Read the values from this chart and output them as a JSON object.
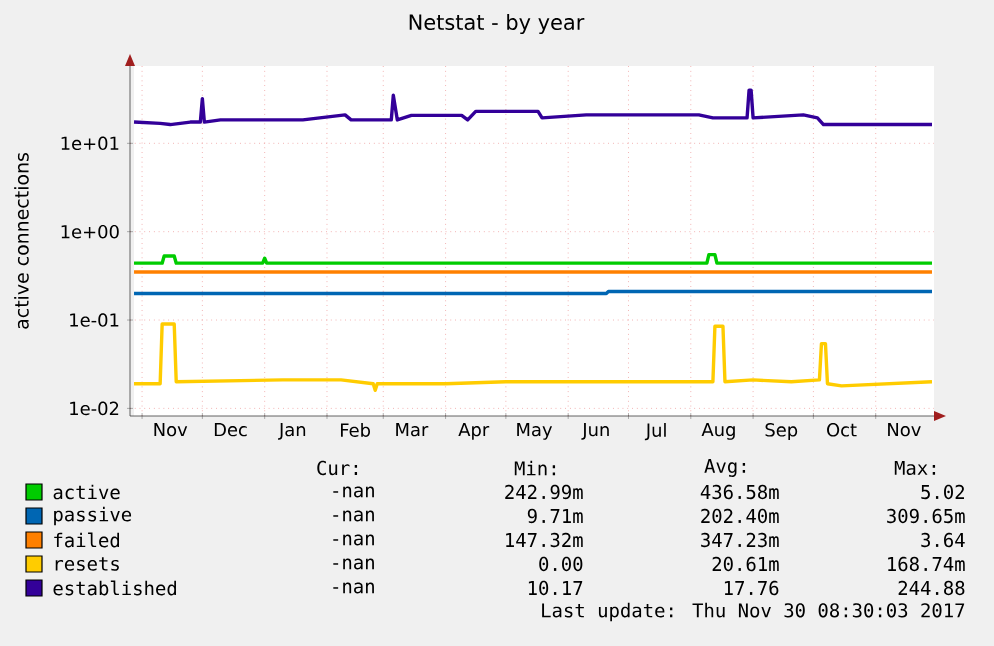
{
  "chart_data": {
    "type": "line",
    "title": "Netstat - by year",
    "ylabel": "active connections",
    "log": true,
    "grid": true,
    "legend": "bottom",
    "xlim": [
      "2016-10-26",
      "2017-11-30"
    ],
    "ylim": [
      0.0082,
      75
    ],
    "xticks": [
      {
        "value": "2016-11-01",
        "label": null
      },
      {
        "value": "2016-12-01",
        "label": null
      },
      {
        "value": "2017-01-01",
        "label": null
      },
      {
        "value": "2017-02-01",
        "label": null
      },
      {
        "value": "2017-03-01",
        "label": null
      },
      {
        "value": "2017-04-01",
        "label": null
      },
      {
        "value": "2017-05-01",
        "label": null
      },
      {
        "value": "2017-06-01",
        "label": null
      },
      {
        "value": "2017-07-01",
        "label": null
      },
      {
        "value": "2017-08-01",
        "label": null
      },
      {
        "value": "2017-09-01",
        "label": null
      },
      {
        "value": "2017-10-01",
        "label": null
      },
      {
        "value": "2017-11-01",
        "label": null
      },
      {
        "value": "2016-11-15",
        "label": "Nov"
      },
      {
        "value": "2016-12-15",
        "label": "Dec"
      },
      {
        "value": "2017-01-15",
        "label": "Jan"
      },
      {
        "value": "2017-02-15",
        "label": "Feb"
      },
      {
        "value": "2017-03-15",
        "label": "Mar"
      },
      {
        "value": "2017-04-15",
        "label": "Apr"
      },
      {
        "value": "2017-05-15",
        "label": "May"
      },
      {
        "value": "2017-06-15",
        "label": "Jun"
      },
      {
        "value": "2017-07-15",
        "label": "Jul"
      },
      {
        "value": "2017-08-15",
        "label": "Aug"
      },
      {
        "value": "2017-09-15",
        "label": "Sep"
      },
      {
        "value": "2017-10-15",
        "label": "Oct"
      },
      {
        "value": "2017-11-15",
        "label": "Nov"
      }
    ],
    "yticks": [
      {
        "value": 0.01,
        "label": "1e-02"
      },
      {
        "value": 0.1,
        "label": "1e-01"
      },
      {
        "value": 1,
        "label": "1e+00"
      },
      {
        "value": 10,
        "label": "1e+01"
      }
    ],
    "series": [
      {
        "name": "active",
        "color": "#00cc00",
        "x": [
          "2016-10-28",
          "2016-11-11",
          "2016-11-12",
          "2016-11-17",
          "2016-11-18",
          "2016-12-31",
          "2017-01-01",
          "2017-01-02",
          "2017-08-09",
          "2017-08-10",
          "2017-08-13",
          "2017-08-14",
          "2017-11-29"
        ],
        "values": [
          0.44,
          0.44,
          0.53,
          0.53,
          0.44,
          0.44,
          0.5,
          0.44,
          0.44,
          0.55,
          0.55,
          0.44,
          0.44
        ]
      },
      {
        "name": "passive",
        "color": "#0066b3",
        "x": [
          "2016-10-28",
          "2017-06-20",
          "2017-06-21",
          "2017-11-29"
        ],
        "values": [
          0.2,
          0.2,
          0.21,
          0.21
        ]
      },
      {
        "name": "failed",
        "color": "#ff8000",
        "x": [
          "2016-10-28",
          "2017-11-29"
        ],
        "values": [
          0.35,
          0.35
        ]
      },
      {
        "name": "resets",
        "color": "#ffcc00",
        "x": [
          "2016-10-28",
          "2016-11-10",
          "2016-11-11",
          "2016-11-17",
          "2016-11-18",
          "2017-01-10",
          "2017-02-08",
          "2017-02-24",
          "2017-02-25",
          "2017-02-26",
          "2017-04-01",
          "2017-05-01",
          "2017-08-12",
          "2017-08-13",
          "2017-08-17",
          "2017-08-18",
          "2017-09-01",
          "2017-09-20",
          "2017-10-04",
          "2017-10-05",
          "2017-10-07",
          "2017-10-08",
          "2017-10-15",
          "2017-11-29"
        ],
        "values": [
          0.019,
          0.019,
          0.09,
          0.09,
          0.02,
          0.021,
          0.021,
          0.019,
          0.016,
          0.019,
          0.019,
          0.02,
          0.02,
          0.085,
          0.085,
          0.02,
          0.021,
          0.02,
          0.021,
          0.054,
          0.054,
          0.019,
          0.018,
          0.02
        ]
      },
      {
        "name": "established",
        "color": "#330099",
        "x": [
          "2016-10-28",
          "2016-11-10",
          "2016-11-15",
          "2016-11-25",
          "2016-11-30",
          "2016-12-01",
          "2016-12-02",
          "2016-12-10",
          "2017-01-20",
          "2017-02-10",
          "2017-02-13",
          "2017-03-05",
          "2017-03-06",
          "2017-03-08",
          "2017-03-15",
          "2017-04-09",
          "2017-04-12",
          "2017-04-16",
          "2017-05-17",
          "2017-05-19",
          "2017-06-10",
          "2017-08-05",
          "2017-08-12",
          "2017-08-29",
          "2017-08-30",
          "2017-08-31",
          "2017-09-01",
          "2017-09-26",
          "2017-10-03",
          "2017-10-06",
          "2017-11-29"
        ],
        "values": [
          17.4,
          16.8,
          16.3,
          17.4,
          17.4,
          32,
          17.4,
          18.4,
          18.4,
          21,
          18.4,
          18.4,
          35,
          18.4,
          20.7,
          20.7,
          18.4,
          23,
          23,
          19.4,
          21,
          21,
          19.4,
          19.4,
          40,
          40,
          19.4,
          21,
          19.4,
          16.3,
          16.3
        ]
      }
    ],
    "annotations": [
      "Cur:",
      "Min:",
      "Avg:",
      "Max:",
      "-nan",
      "242.99m",
      "436.58m",
      "5.02",
      "-nan",
      "9.71m",
      "202.40m",
      "309.65m",
      "-nan",
      "147.32m",
      "347.23m",
      "3.64",
      "-nan",
      "0.00",
      "20.61m",
      "168.74m",
      "-nan",
      "10.17",
      "17.76",
      "244.88",
      "Last update: Thu Nov 30 08:30:03 2017"
    ]
  }
}
